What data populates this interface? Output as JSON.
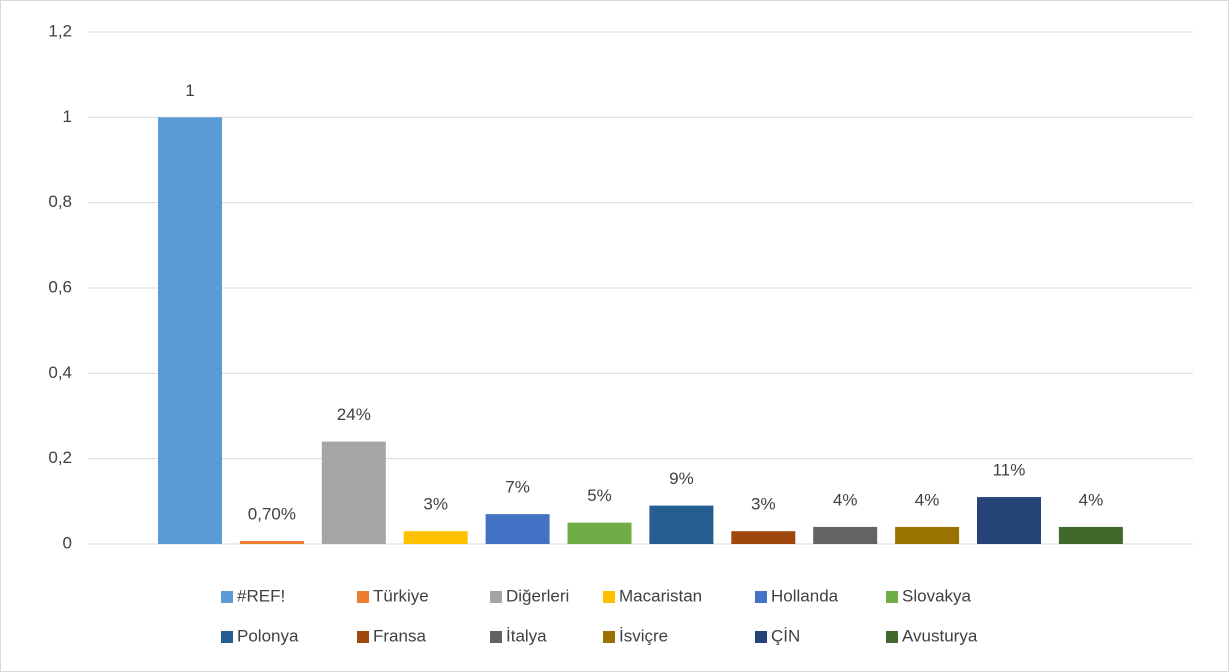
{
  "chart_data": {
    "type": "bar",
    "ylim": [
      0,
      1.2
    ],
    "yticks": [
      0,
      {
        "value": 0.2,
        "label": "0,2"
      },
      {
        "value": 0.4,
        "label": "0,4"
      },
      {
        "value": 0.6,
        "label": "0,6"
      },
      {
        "value": 0.8,
        "label": "0,8"
      },
      1,
      {
        "value": 1.2,
        "label": "1,2"
      }
    ],
    "grid": true,
    "legend": "bottom",
    "series": [
      {
        "name": "#REF!",
        "color": "#5b9bd5",
        "values": [
          1
        ],
        "value_labels": [
          "1"
        ]
      },
      {
        "name": "Türkiye",
        "color": "#ed7d31",
        "values": [
          0.007
        ],
        "value_labels": [
          "0,70%"
        ]
      },
      {
        "name": "Diğerleri",
        "color": "#a5a5a5",
        "values": [
          0.24
        ],
        "value_labels": [
          "24%"
        ]
      },
      {
        "name": "Macaristan",
        "color": "#ffc000",
        "values": [
          0.03
        ],
        "value_labels": [
          "3%"
        ]
      },
      {
        "name": "Hollanda",
        "color": "#4472c4",
        "values": [
          0.07
        ],
        "value_labels": [
          "7%"
        ]
      },
      {
        "name": "Slovakya",
        "color": "#70ad47",
        "values": [
          0.05
        ],
        "value_labels": [
          "5%"
        ]
      },
      {
        "name": "Polonya",
        "color": "#255e91",
        "values": [
          0.09
        ],
        "value_labels": [
          "9%"
        ]
      },
      {
        "name": "Fransa",
        "color": "#9e480e",
        "values": [
          0.03
        ],
        "value_labels": [
          "3%"
        ]
      },
      {
        "name": "İtalya",
        "color": "#636363",
        "values": [
          0.04
        ],
        "value_labels": [
          "4%"
        ]
      },
      {
        "name": "İsviçre",
        "color": "#997300",
        "values": [
          0.04
        ],
        "value_labels": [
          "4%"
        ]
      },
      {
        "name": "ÇİN",
        "color": "#264478",
        "values": [
          0.11
        ],
        "value_labels": [
          "11%"
        ]
      },
      {
        "name": "Avusturya",
        "color": "#43682b",
        "values": [
          0.04
        ],
        "value_labels": [
          "4%"
        ]
      }
    ]
  }
}
